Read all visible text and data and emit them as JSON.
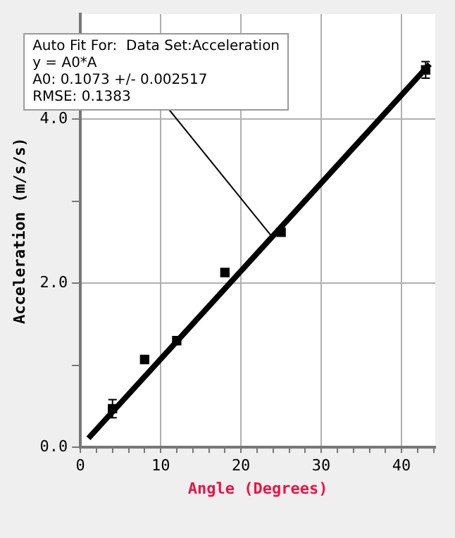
{
  "chart_data": {
    "type": "scatter",
    "xlabel": "Angle (Degrees)",
    "ylabel": "Acceleration (m/s/s)",
    "xlim": [
      0,
      44.2
    ],
    "ylim": [
      0,
      5.28
    ],
    "xticks": [
      0,
      {
        "value": 2,
        "label": null
      },
      {
        "value": 4,
        "label": null
      },
      {
        "value": 6,
        "label": null
      },
      {
        "value": 8,
        "label": null
      },
      10,
      {
        "value": 12,
        "label": null
      },
      {
        "value": 14,
        "label": null
      },
      {
        "value": 16,
        "label": null
      },
      {
        "value": 18,
        "label": null
      },
      20,
      {
        "value": 22,
        "label": null
      },
      {
        "value": 24,
        "label": null
      },
      {
        "value": 26,
        "label": null
      },
      {
        "value": 28,
        "label": null
      },
      30,
      {
        "value": 32,
        "label": null
      },
      {
        "value": 34,
        "label": null
      },
      {
        "value": 36,
        "label": null
      },
      {
        "value": 38,
        "label": null
      },
      40,
      {
        "value": 42,
        "label": null
      },
      {
        "value": 44,
        "label": null
      }
    ],
    "yticks": [
      {
        "value": 0,
        "label": "0.0"
      },
      {
        "value": 1,
        "label": null
      },
      {
        "value": 2,
        "label": "2.0"
      },
      {
        "value": 3,
        "label": null
      },
      {
        "value": 4,
        "label": "4.0"
      },
      {
        "value": 5,
        "label": null
      }
    ],
    "grid": true,
    "legend": false,
    "marker": "square",
    "series": [
      {
        "color": "#000000",
        "x": [
          4,
          8,
          12,
          18,
          25,
          43
        ],
        "values": [
          0.47,
          1.07,
          1.3,
          2.13,
          2.62,
          4.6
        ],
        "errors": [
          0.11,
          null,
          null,
          null,
          null,
          0.1
        ]
      },
      {
        "type": "line",
        "marker": "none",
        "color": "#000000",
        "x": [
          1,
          43.5
        ],
        "values": [
          0.11,
          4.67
        ]
      }
    ],
    "annotations": [
      {
        "text": "Auto Fit For:  Data Set:Acceleration\ny = A0*A\nA0: 0.1073 +/- 0.002517\nRMSE: 0.1383",
        "x": 24,
        "y": 2.55
      }
    ]
  }
}
